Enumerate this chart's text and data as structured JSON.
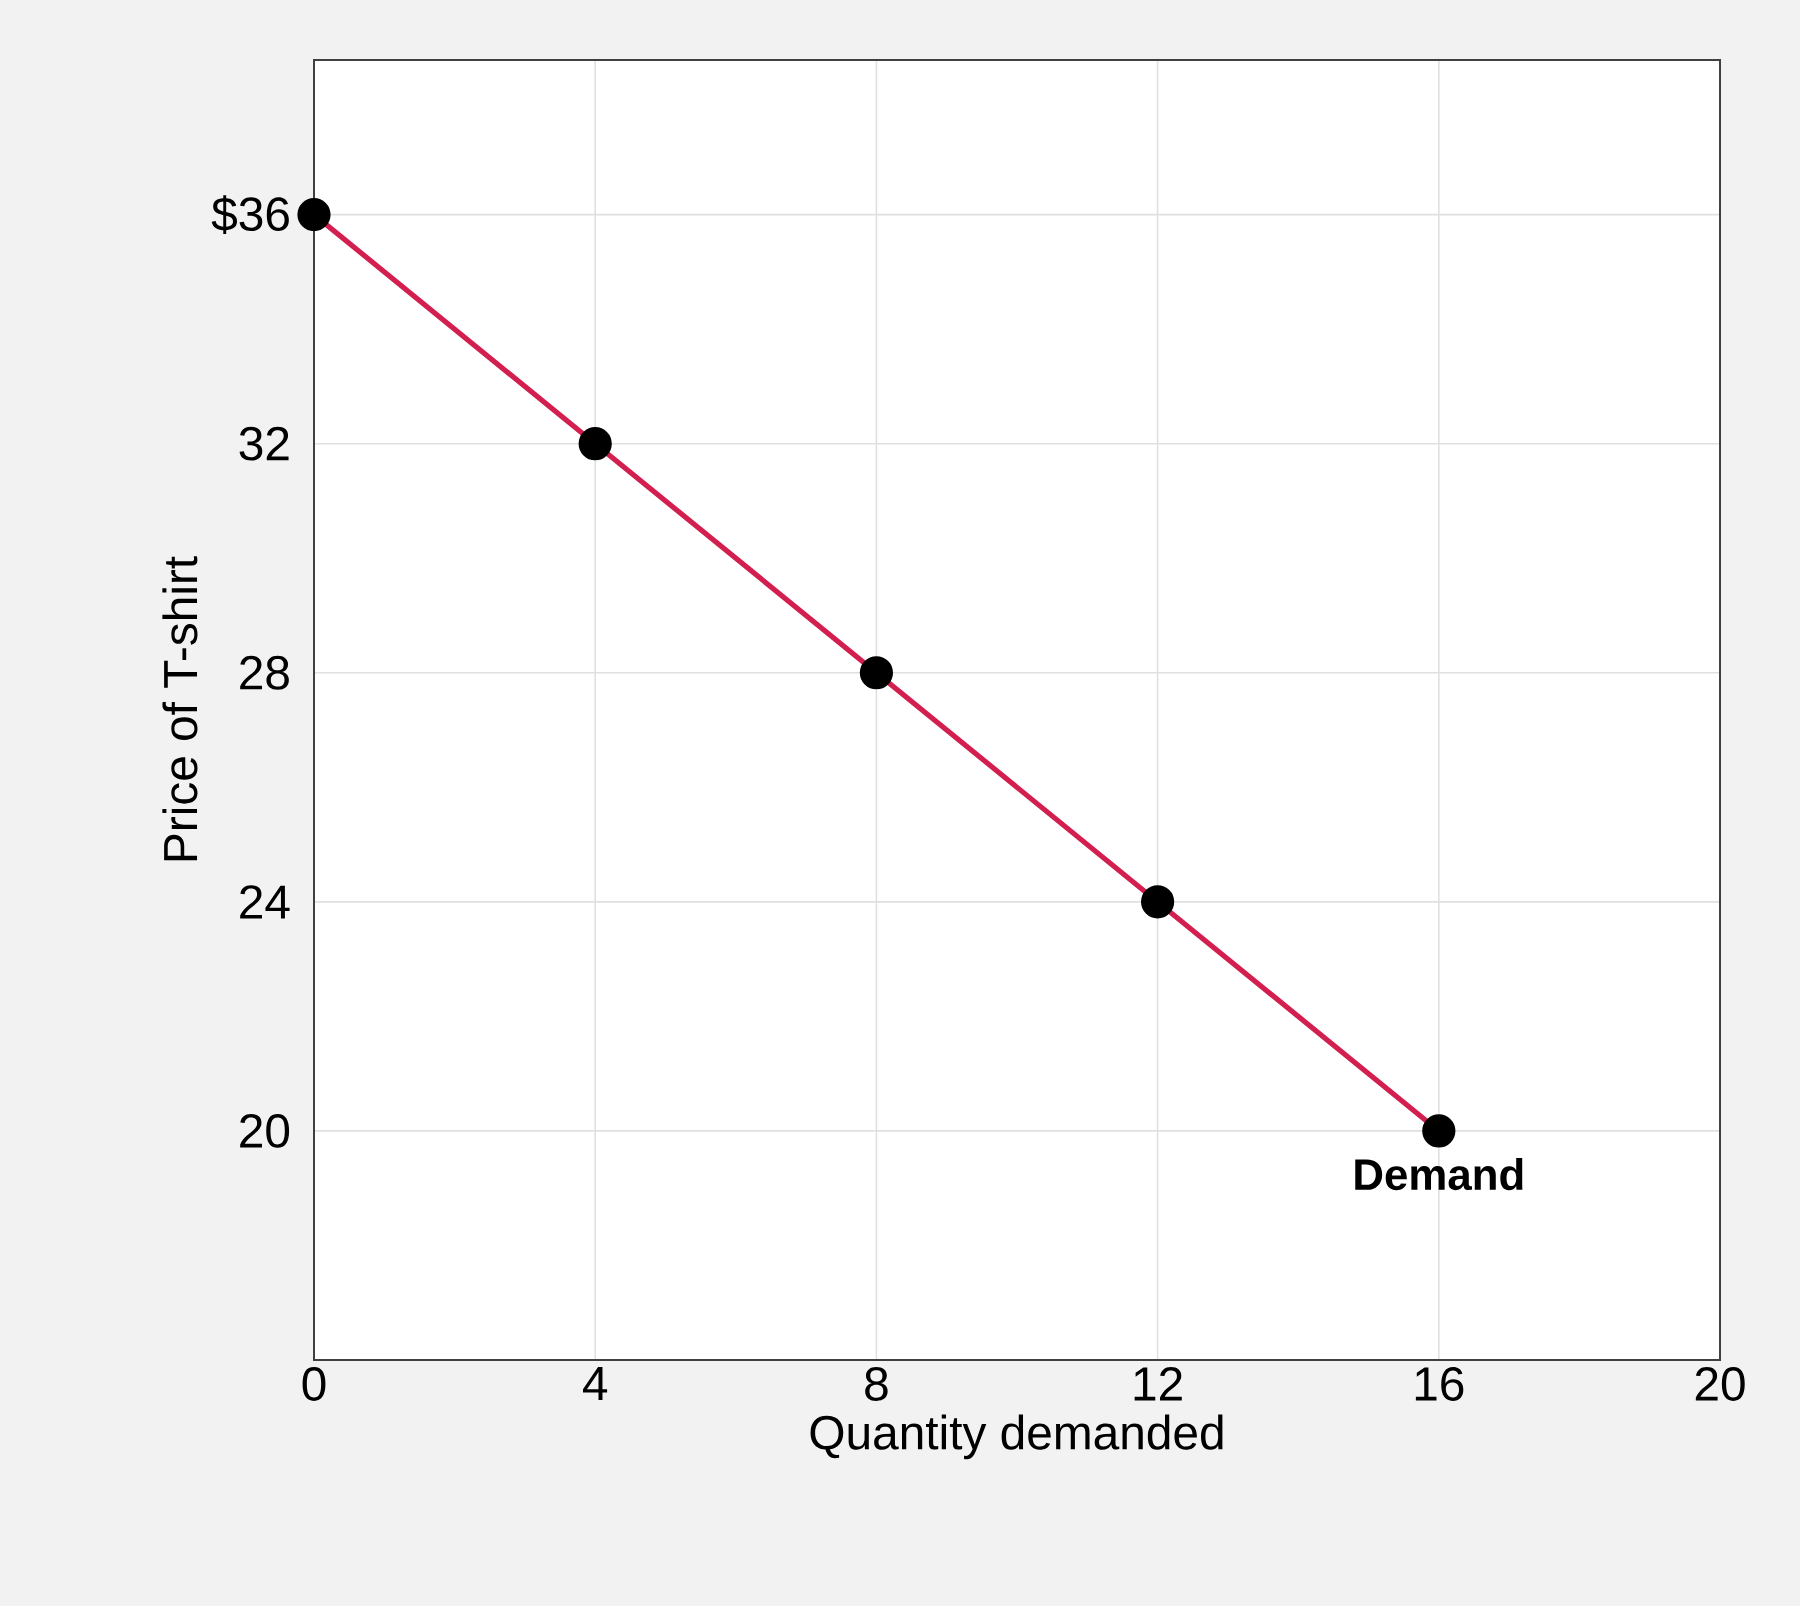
{
  "chart_data": {
    "type": "line",
    "xlabel": "Quantity demanded",
    "ylabel": "Price of T-shirt",
    "x": [
      0,
      4,
      8,
      12,
      16
    ],
    "series": [
      {
        "color": "#d31f4f",
        "values": [
          36,
          32,
          28,
          24,
          20
        ]
      }
    ],
    "xlim": [
      0,
      20
    ],
    "xticks": [
      0,
      4,
      8,
      12,
      16,
      20
    ],
    "ylim": [
      16,
      38.7
    ],
    "yticks": [
      20,
      24,
      28,
      32,
      {
        "value": 36,
        "label": "$36"
      }
    ],
    "annotations": [
      {
        "text": "Demand",
        "x": 16,
        "y": 20
      }
    ],
    "grid": true,
    "marker": "circle",
    "line_style": "solid"
  }
}
